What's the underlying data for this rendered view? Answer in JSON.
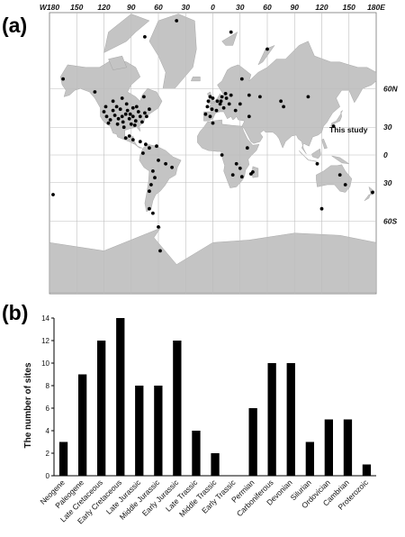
{
  "panel_a": {
    "label": "(a)",
    "annotation": "This study",
    "lon_labels": [
      "W180",
      "150",
      "120",
      "90",
      "60",
      "30",
      "0",
      "30",
      "60",
      "90",
      "120",
      "150",
      "180E"
    ],
    "lat_labels": [
      "60N",
      "30",
      "0",
      "30",
      "60S"
    ],
    "sites": [
      [
        -165,
        65
      ],
      [
        -130,
        58
      ],
      [
        -110,
        52
      ],
      [
        -100,
        54
      ],
      [
        -95,
        50
      ],
      [
        -88,
        47
      ],
      [
        -76,
        55
      ],
      [
        -70,
        46
      ],
      [
        -117,
        40
      ],
      [
        -113,
        37
      ],
      [
        -108,
        41
      ],
      [
        -104,
        38
      ],
      [
        -100,
        40
      ],
      [
        -96,
        42
      ],
      [
        -92,
        38
      ],
      [
        -88,
        40
      ],
      [
        -85,
        36
      ],
      [
        -80,
        40
      ],
      [
        -75,
        43
      ],
      [
        -105,
        33
      ],
      [
        -98,
        30
      ],
      [
        -90,
        33
      ],
      [
        -110,
        45
      ],
      [
        -94,
        45
      ],
      [
        -82,
        44
      ],
      [
        -115,
        34
      ],
      [
        -118,
        48
      ],
      [
        -102,
        46
      ],
      [
        -86,
        32
      ],
      [
        -78,
        35
      ],
      [
        -106,
        48
      ],
      [
        -91,
        42
      ],
      [
        -99,
        35
      ],
      [
        -73,
        40
      ],
      [
        -120,
        44
      ],
      [
        -84,
        48
      ],
      [
        -92,
        21
      ],
      [
        -88,
        17
      ],
      [
        -80,
        15
      ],
      [
        -74,
        12
      ],
      [
        -70,
        8
      ],
      [
        -62,
        10
      ],
      [
        -77,
        2
      ],
      [
        -60,
        -6
      ],
      [
        -52,
        -10
      ],
      [
        -45,
        -14
      ],
      [
        -66,
        -18
      ],
      [
        -64,
        -25
      ],
      [
        -68,
        -32
      ],
      [
        -70,
        -38
      ],
      [
        -70,
        -52
      ],
      [
        -66,
        -55
      ],
      [
        -60,
        -63
      ],
      [
        -58,
        -73
      ],
      [
        -96,
        19
      ],
      [
        -40,
        82
      ],
      [
        -75,
        79
      ],
      [
        -5,
        52
      ],
      [
        0,
        54
      ],
      [
        -3,
        55
      ],
      [
        5,
        52
      ],
      [
        10,
        55
      ],
      [
        14,
        57
      ],
      [
        20,
        56
      ],
      [
        8,
        50
      ],
      [
        -8,
        42
      ],
      [
        -3,
        40
      ],
      [
        12,
        47
      ],
      [
        18,
        50
      ],
      [
        25,
        45
      ],
      [
        4,
        45
      ],
      [
        -1,
        46
      ],
      [
        15,
        54
      ],
      [
        30,
        50
      ],
      [
        40,
        56
      ],
      [
        52,
        55
      ],
      [
        9,
        52
      ],
      [
        -6,
        48
      ],
      [
        0,
        34
      ],
      [
        40,
        40
      ],
      [
        32,
        65
      ],
      [
        60,
        76
      ],
      [
        20,
        80
      ],
      [
        75,
        52
      ],
      [
        78,
        48
      ],
      [
        105,
        55
      ],
      [
        133,
        31
      ],
      [
        26,
        -10
      ],
      [
        30,
        -15
      ],
      [
        22,
        -22
      ],
      [
        44,
        -19
      ],
      [
        32,
        -24
      ],
      [
        42,
        -21
      ],
      [
        115,
        -10
      ],
      [
        140,
        -22
      ],
      [
        146,
        -32
      ],
      [
        176,
        -39
      ],
      [
        -176,
        -41
      ],
      [
        120,
        -52
      ],
      [
        10,
        0
      ],
      [
        38,
        8
      ]
    ],
    "study_site": [
      133,
      31
    ]
  },
  "chart_data": {
    "type": "bar",
    "label": "(b)",
    "categories": [
      "Neogene",
      "Paleogene",
      "Late Cretaceous",
      "Early Cretaceous",
      "Late Jurassic",
      "Middle Jurassic",
      "Early Jurassic",
      "Late Trassic",
      "Middle Trassic",
      "Early Trassic",
      "Permian",
      "Carboniferous",
      "Devonian",
      "Silurian",
      "Ordovician",
      "Cambrian",
      "Proterozoic"
    ],
    "values": [
      3,
      9,
      12,
      14,
      8,
      8,
      12,
      4,
      2,
      0,
      6,
      10,
      10,
      3,
      5,
      5,
      1
    ],
    "ylabel": "The number of sites",
    "xlabel": "",
    "ylim": [
      0,
      14
    ],
    "yticks": [
      0,
      2,
      4,
      6,
      8,
      10,
      12,
      14
    ],
    "grid": false
  }
}
